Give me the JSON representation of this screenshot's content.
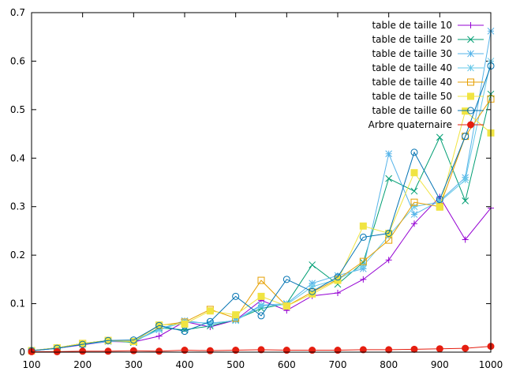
{
  "chart_data": {
    "type": "line",
    "title": "",
    "xlabel": "",
    "ylabel": "",
    "xlim": [
      100,
      1000
    ],
    "ylim": [
      0,
      0.7
    ],
    "grid": false,
    "legend_position": "top-right",
    "x": [
      100,
      150,
      200,
      250,
      300,
      350,
      400,
      450,
      500,
      550,
      600,
      650,
      700,
      750,
      800,
      850,
      900,
      950,
      1000
    ],
    "x_ticks": [
      "100",
      "200",
      "300",
      "400",
      "500",
      "600",
      "700",
      "800",
      "900",
      "1000"
    ],
    "x_tick_values": [
      100,
      200,
      300,
      400,
      500,
      600,
      700,
      800,
      900,
      1000
    ],
    "y_ticks": [
      "0",
      "0.1",
      "0.2",
      "0.3",
      "0.4",
      "0.5",
      "0.6",
      "0.7"
    ],
    "y_tick_values": [
      0,
      0.1,
      0.2,
      0.3,
      0.4,
      0.5,
      0.6,
      0.7
    ],
    "series": [
      {
        "name": "table de taille 10",
        "color": "#9400d3",
        "marker": "plus",
        "values": [
          0.003,
          0.008,
          0.015,
          0.022,
          0.021,
          0.033,
          0.063,
          0.052,
          0.066,
          0.107,
          0.086,
          0.116,
          0.122,
          0.15,
          0.19,
          0.265,
          0.32,
          0.232,
          0.297
        ]
      },
      {
        "name": "table de taille 20",
        "color": "#009e73",
        "marker": "cross",
        "values": [
          0.003,
          0.009,
          0.018,
          0.024,
          0.02,
          0.05,
          0.046,
          0.054,
          0.067,
          0.09,
          0.1,
          0.18,
          0.14,
          0.185,
          0.358,
          0.332,
          0.443,
          0.312,
          0.532
        ]
      },
      {
        "name": "table de taille 30",
        "color": "#56b4e9",
        "marker": "star",
        "values": [
          0.003,
          0.008,
          0.016,
          0.022,
          0.023,
          0.047,
          0.065,
          0.058,
          0.066,
          0.097,
          0.1,
          0.142,
          0.158,
          0.172,
          0.409,
          0.284,
          0.312,
          0.36,
          0.662
        ]
      },
      {
        "name": "table de taille 40",
        "color": "#66c8e8",
        "marker": "star",
        "values": [
          0.003,
          0.008,
          0.017,
          0.023,
          0.022,
          0.046,
          0.062,
          0.06,
          0.065,
          0.095,
          0.098,
          0.135,
          0.15,
          0.178,
          0.24,
          0.3,
          0.31,
          0.355,
          0.6
        ]
      },
      {
        "name": "table de taille 40",
        "color": "#e69f00",
        "marker": "square",
        "values": [
          0.003,
          0.009,
          0.018,
          0.024,
          0.022,
          0.055,
          0.062,
          0.088,
          0.07,
          0.148,
          0.095,
          0.124,
          0.15,
          0.187,
          0.231,
          0.309,
          0.3,
          0.445,
          0.522
        ]
      },
      {
        "name": "table de taille 50",
        "color": "#f0e442",
        "marker": "filled-square",
        "values": [
          0.003,
          0.009,
          0.018,
          0.024,
          0.022,
          0.056,
          0.058,
          0.085,
          0.077,
          0.115,
          0.095,
          0.12,
          0.148,
          0.26,
          0.245,
          0.37,
          0.299,
          0.497,
          0.452
        ]
      },
      {
        "name": "table de taille 60",
        "color": "#0072b2",
        "marker": "circle",
        "values": [
          0.003,
          0.008,
          0.016,
          0.024,
          0.025,
          0.055,
          0.043,
          0.063,
          0.115,
          0.075,
          0.15,
          0.125,
          0.155,
          0.237,
          0.245,
          0.412,
          0.315,
          0.445,
          0.59
        ]
      },
      {
        "name": "Arbre quaternaire",
        "color": "#e51e10",
        "marker": "filled-circle",
        "values": [
          0.001,
          0.001,
          0.002,
          0.002,
          0.003,
          0.002,
          0.004,
          0.003,
          0.004,
          0.005,
          0.004,
          0.004,
          0.004,
          0.005,
          0.005,
          0.006,
          0.007,
          0.008,
          0.012
        ]
      }
    ]
  }
}
